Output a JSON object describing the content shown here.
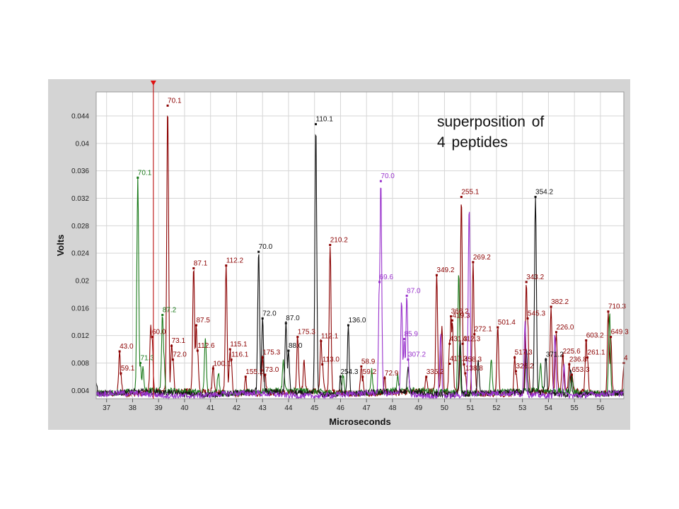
{
  "annotation": {
    "line1": "superposition of",
    "line2": "4 peptides"
  },
  "chart_data": {
    "type": "line",
    "title": "",
    "xlabel": "Microseconds",
    "ylabel": "Volts",
    "xlim": [
      36.6,
      56.9
    ],
    "ylim": [
      0.0028,
      0.0475
    ],
    "x_ticks": [
      37,
      38,
      39,
      40,
      41,
      42,
      43,
      44,
      45,
      46,
      47,
      48,
      49,
      50,
      51,
      52,
      53,
      54,
      55,
      56
    ],
    "y_ticks": [
      0.004,
      0.008,
      0.012,
      0.016,
      0.02,
      0.024,
      0.028,
      0.032,
      0.036,
      0.04,
      0.044
    ],
    "y_tick_labels": [
      "0.004",
      "0.008",
      "0.012",
      "0.016",
      "0.02",
      "0.024",
      "0.028",
      "0.032",
      "0.036",
      "0.04",
      "0.044"
    ],
    "grid": true,
    "legend": "none",
    "cursor_marker_x": 38.8,
    "series": [
      {
        "color": "#8b0000",
        "baseline": 0.0037,
        "peaks": [
          {
            "x": 37.5,
            "y": 0.0097,
            "label": "43.0"
          },
          {
            "x": 37.55,
            "y": 0.0065,
            "label": "59.1"
          },
          {
            "x": 38.7,
            "y": 0.0138
          },
          {
            "x": 38.75,
            "y": 0.0118,
            "label": "60.0"
          },
          {
            "x": 39.35,
            "y": 0.0455,
            "label": "70.1"
          },
          {
            "x": 39.5,
            "y": 0.0105,
            "label": "73.1"
          },
          {
            "x": 39.55,
            "y": 0.0085,
            "label": "72.0"
          },
          {
            "x": 40.35,
            "y": 0.0218,
            "label": "87.1"
          },
          {
            "x": 40.45,
            "y": 0.0135,
            "label": "87.5"
          },
          {
            "x": 40.5,
            "y": 0.0098,
            "label": "112.6"
          },
          {
            "x": 41.1,
            "y": 0.0072,
            "label": "100.1"
          },
          {
            "x": 41.6,
            "y": 0.0222,
            "label": "112.2"
          },
          {
            "x": 41.75,
            "y": 0.01,
            "label": "115.1"
          },
          {
            "x": 41.8,
            "y": 0.0085,
            "label": "116.1"
          },
          {
            "x": 42.35,
            "y": 0.006,
            "label": "155.2"
          },
          {
            "x": 43.0,
            "y": 0.0088,
            "label": "175.3"
          },
          {
            "x": 43.1,
            "y": 0.0063,
            "label": "73.0"
          },
          {
            "x": 44.35,
            "y": 0.0118,
            "label": "175.3"
          },
          {
            "x": 44.6,
            "y": 0.008
          },
          {
            "x": 45.25,
            "y": 0.0112,
            "label": "112.1"
          },
          {
            "x": 45.3,
            "y": 0.0078,
            "label": "113.0"
          },
          {
            "x": 45.6,
            "y": 0.0252,
            "label": "210.2"
          },
          {
            "x": 46.8,
            "y": 0.0075,
            "label": "58.9"
          },
          {
            "x": 46.85,
            "y": 0.006,
            "label": "59.2"
          },
          {
            "x": 47.7,
            "y": 0.0058,
            "label": "72.9"
          },
          {
            "x": 49.3,
            "y": 0.006,
            "label": "335.2"
          },
          {
            "x": 49.7,
            "y": 0.0208,
            "label": "349.2"
          },
          {
            "x": 49.9,
            "y": 0.0128
          },
          {
            "x": 50.2,
            "y": 0.0108,
            "label": "431.3"
          },
          {
            "x": 50.25,
            "y": 0.0148,
            "label": "366.2"
          },
          {
            "x": 50.3,
            "y": 0.0142,
            "label": "419.3"
          },
          {
            "x": 50.2,
            "y": 0.0079,
            "label": "417.3"
          },
          {
            "x": 50.65,
            "y": 0.0322,
            "label": "255.1"
          },
          {
            "x": 50.7,
            "y": 0.0108,
            "label": "412.3"
          },
          {
            "x": 50.75,
            "y": 0.0078,
            "label": "458.3"
          },
          {
            "x": 50.8,
            "y": 0.0065,
            "label": "138.8"
          },
          {
            "x": 51.1,
            "y": 0.0227,
            "label": "269.2"
          },
          {
            "x": 51.15,
            "y": 0.0122,
            "label": "272.1"
          },
          {
            "x": 52.05,
            "y": 0.0132,
            "label": "501.4"
          },
          {
            "x": 52.7,
            "y": 0.0088,
            "label": "517.3"
          },
          {
            "x": 52.75,
            "y": 0.0068,
            "label": "326.2"
          },
          {
            "x": 53.15,
            "y": 0.0198,
            "label": "343.2"
          },
          {
            "x": 53.2,
            "y": 0.0145,
            "label": "545.3"
          },
          {
            "x": 54.1,
            "y": 0.0162,
            "label": "382.2"
          },
          {
            "x": 54.3,
            "y": 0.0125,
            "label": "226.0"
          },
          {
            "x": 54.55,
            "y": 0.009,
            "label": "225.6"
          },
          {
            "x": 54.8,
            "y": 0.0078,
            "label": "236.8"
          },
          {
            "x": 54.9,
            "y": 0.0063,
            "label": "653.3"
          },
          {
            "x": 55.45,
            "y": 0.0113,
            "label": "603.2"
          },
          {
            "x": 55.5,
            "y": 0.0088,
            "label": "261.1"
          },
          {
            "x": 56.3,
            "y": 0.0155,
            "label": "710.3"
          },
          {
            "x": 56.4,
            "y": 0.0118,
            "label": "649.3"
          },
          {
            "x": 56.9,
            "y": 0.008,
            "label": "4"
          }
        ]
      },
      {
        "color": "#1a7a1a",
        "baseline": 0.0038,
        "peaks": [
          {
            "x": 38.2,
            "y": 0.035,
            "label": "70.1"
          },
          {
            "x": 38.3,
            "y": 0.008,
            "label": "71.3"
          },
          {
            "x": 38.4,
            "y": 0.007
          },
          {
            "x": 39.15,
            "y": 0.015,
            "label": "87.2"
          },
          {
            "x": 39.2,
            "y": 0.009
          },
          {
            "x": 40.8,
            "y": 0.012
          },
          {
            "x": 41.3,
            "y": 0.007
          },
          {
            "x": 43.8,
            "y": 0.008
          },
          {
            "x": 46.1,
            "y": 0.0065
          },
          {
            "x": 47.2,
            "y": 0.007
          },
          {
            "x": 48.2,
            "y": 0.006
          },
          {
            "x": 50.55,
            "y": 0.0212
          },
          {
            "x": 51.8,
            "y": 0.009
          },
          {
            "x": 53.7,
            "y": 0.0075
          },
          {
            "x": 54.9,
            "y": 0.006
          },
          {
            "x": 56.35,
            "y": 0.0155
          }
        ]
      },
      {
        "color": "#111111",
        "baseline": 0.0036,
        "peaks": [
          {
            "x": 36.6,
            "y": 0.0053
          },
          {
            "x": 42.85,
            "y": 0.0242,
            "label": "70.0"
          },
          {
            "x": 43.0,
            "y": 0.0145,
            "label": "72.0"
          },
          {
            "x": 43.9,
            "y": 0.0138,
            "label": "87.0"
          },
          {
            "x": 44.0,
            "y": 0.0098,
            "label": "88.0"
          },
          {
            "x": 45.05,
            "y": 0.0428,
            "label": "110.1"
          },
          {
            "x": 46.0,
            "y": 0.006,
            "label": "254.3"
          },
          {
            "x": 46.3,
            "y": 0.0135,
            "label": "136.0"
          },
          {
            "x": 48.6,
            "y": 0.007
          },
          {
            "x": 50.6,
            "y": 0.012
          },
          {
            "x": 51.3,
            "y": 0.0085
          },
          {
            "x": 53.5,
            "y": 0.0322,
            "label": "354.2"
          },
          {
            "x": 53.15,
            "y": 0.0102
          },
          {
            "x": 53.9,
            "y": 0.0085,
            "label": "371.2"
          },
          {
            "x": 54.85,
            "y": 0.0076
          }
        ]
      },
      {
        "color": "#9932cc",
        "baseline": 0.0034,
        "peaks": [
          {
            "x": 47.55,
            "y": 0.0345,
            "label": "70.0"
          },
          {
            "x": 47.5,
            "y": 0.0198,
            "label": "69.6"
          },
          {
            "x": 48.35,
            "y": 0.0172
          },
          {
            "x": 48.55,
            "y": 0.0178,
            "label": "87.0"
          },
          {
            "x": 48.45,
            "y": 0.0115,
            "label": "85.9"
          },
          {
            "x": 48.6,
            "y": 0.0085,
            "label": "307.2"
          },
          {
            "x": 49.85,
            "y": 0.0125
          },
          {
            "x": 50.95,
            "y": 0.031
          },
          {
            "x": 53.1,
            "y": 0.0143
          },
          {
            "x": 54.25,
            "y": 0.0122
          },
          {
            "x": 54.6,
            "y": 0.008
          }
        ]
      }
    ]
  }
}
